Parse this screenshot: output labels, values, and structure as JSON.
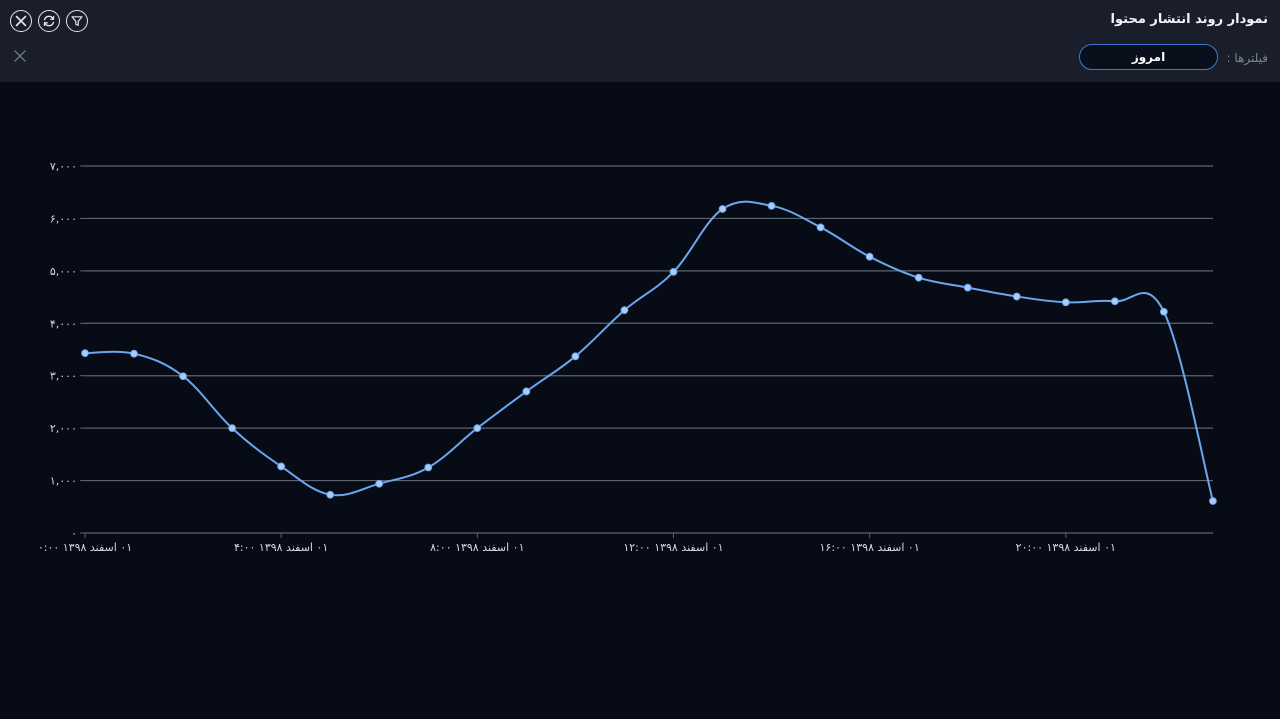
{
  "header": {
    "title": "نمودار روند انتشار محتوا",
    "filter_label": "فیلترها :",
    "filter_value": "امروز",
    "icons": [
      "close-circle-icon",
      "refresh-icon",
      "filter-icon",
      "close-icon"
    ]
  },
  "colors": {
    "line": "#6aa7ee",
    "grid": "#5e6470",
    "accent": "#3a78d8"
  },
  "chart_data": {
    "type": "line",
    "title": "",
    "xlabel": "",
    "ylabel": "",
    "ylim": [
      0,
      7000
    ],
    "y_ticks": [
      0,
      1000,
      2000,
      3000,
      4000,
      5000,
      6000,
      7000
    ],
    "y_tick_labels": [
      "۰",
      "۱,۰۰۰",
      "۲,۰۰۰",
      "۳,۰۰۰",
      "۴,۰۰۰",
      "۵,۰۰۰",
      "۶,۰۰۰",
      "۷,۰۰۰"
    ],
    "x_tick_labels": [
      "۰۱ اسفند ۱۳۹۸  ۰:۰۰",
      "۰۱ اسفند ۱۳۹۸  ۴:۰۰",
      "۰۱ اسفند ۱۳۹۸  ۸:۰۰",
      "۰۱ اسفند ۱۳۹۸  ۱۲:۰۰",
      "۰۱ اسفند ۱۳۹۸  ۱۶:۰۰",
      "۰۱ اسفند ۱۳۹۸  ۲۰:۰۰"
    ],
    "x_tick_hours": [
      0,
      4,
      8,
      12,
      16,
      20
    ],
    "grid": true,
    "legend": "none",
    "series": [
      {
        "x_hours": [
          0,
          1,
          2,
          3,
          4,
          5,
          6,
          7,
          8,
          9,
          10,
          11,
          12,
          13,
          14,
          15,
          16,
          17,
          18,
          19,
          20,
          21,
          22,
          23
        ],
        "values": [
          3430,
          3420,
          2990,
          2000,
          1270,
          730,
          940,
          1250,
          2000,
          2700,
          3370,
          4250,
          4980,
          6180,
          6240,
          5830,
          5270,
          4870,
          4680,
          4510,
          4400,
          4420,
          4220,
          610
        ]
      }
    ]
  }
}
